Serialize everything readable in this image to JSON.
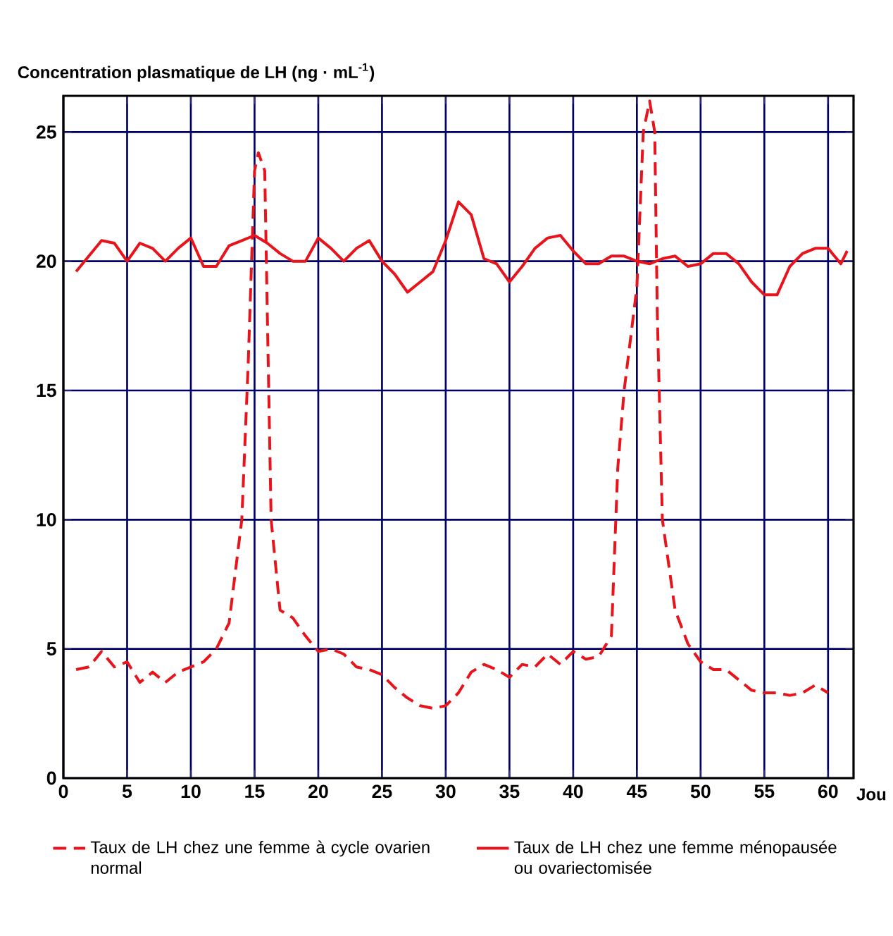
{
  "chart_data": {
    "type": "line",
    "ylabel": "Concentration plasmatique de LH (ng · mL$^{-1}$)",
    "xlabel": "Jou",
    "xlim": [
      0,
      62
    ],
    "ylim": [
      0,
      26.4
    ],
    "xticks": [
      0,
      5,
      10,
      15,
      20,
      25,
      30,
      35,
      40,
      45,
      50,
      55,
      60
    ],
    "yticks": [
      0,
      5,
      10,
      15,
      20,
      25
    ],
    "grid": true,
    "legend": "bottom",
    "marker": "none",
    "series": [
      {
        "name": "Taux de LH chez une femme à cycle ovarien normal",
        "color": "#e8141b",
        "line_style": "dashed",
        "x": [
          1,
          2,
          3,
          4,
          5,
          6,
          7,
          8,
          9,
          10,
          11,
          12,
          13,
          14,
          14.5,
          15,
          15.3,
          15.8,
          16,
          16.3,
          17,
          18,
          19,
          20,
          21,
          22,
          23,
          24,
          25,
          26,
          27,
          28,
          29,
          30,
          31,
          32,
          33,
          34,
          35,
          36,
          37,
          38,
          39,
          40,
          41,
          42,
          43,
          43.5,
          44,
          45,
          45.5,
          46,
          46.4,
          46.6,
          47,
          48,
          49,
          50,
          51,
          52,
          53,
          54,
          55,
          56,
          57,
          58,
          59,
          60
        ],
        "values": [
          4.2,
          4.3,
          4.9,
          4.3,
          4.5,
          3.7,
          4.1,
          3.7,
          4.1,
          4.3,
          4.5,
          5.0,
          6.0,
          10,
          16,
          23.5,
          24.2,
          23.5,
          18,
          10,
          6.5,
          6.2,
          5.5,
          4.9,
          5.0,
          4.8,
          4.3,
          4.2,
          4.0,
          3.5,
          3.1,
          2.8,
          2.7,
          2.8,
          3.3,
          4.1,
          4.4,
          4.2,
          3.9,
          4.4,
          4.3,
          4.8,
          4.4,
          4.9,
          4.6,
          4.7,
          5.5,
          12,
          15,
          19,
          25,
          26.2,
          25,
          18,
          10,
          6.5,
          5.2,
          4.5,
          4.2,
          4.2,
          3.8,
          3.4,
          3.3,
          3.3,
          3.2,
          3.3,
          3.6,
          3.3
        ]
      },
      {
        "name": "Taux de LH chez une femme ménopausée ou ovariectomisée",
        "color": "#e8141b",
        "line_style": "solid",
        "x": [
          1,
          2,
          3,
          4,
          5,
          6,
          7,
          8,
          9,
          10,
          11,
          12,
          13,
          14,
          15,
          16,
          17,
          18,
          19,
          20,
          21,
          22,
          23,
          24,
          25,
          26,
          27,
          28,
          29,
          30,
          31,
          32,
          33,
          34,
          35,
          36,
          37,
          38,
          39,
          40,
          41,
          42,
          43,
          44,
          45,
          46,
          47,
          48,
          49,
          50,
          51,
          52,
          53,
          54,
          55,
          56,
          57,
          58,
          59,
          60,
          61,
          61.5
        ],
        "values": [
          19.6,
          20.2,
          20.8,
          20.7,
          20.0,
          20.7,
          20.5,
          20.0,
          20.5,
          20.9,
          19.8,
          19.8,
          20.6,
          20.8,
          21.0,
          20.7,
          20.3,
          20.0,
          20.0,
          20.9,
          20.5,
          20.0,
          20.5,
          20.8,
          20.0,
          19.5,
          18.8,
          19.2,
          19.6,
          20.8,
          22.3,
          21.8,
          20.1,
          19.9,
          19.2,
          19.8,
          20.5,
          20.9,
          21.0,
          20.4,
          19.9,
          19.9,
          20.2,
          20.2,
          20.0,
          19.9,
          20.1,
          20.2,
          19.8,
          19.9,
          20.3,
          20.3,
          19.9,
          19.2,
          18.7,
          18.7,
          19.8,
          20.3,
          20.5,
          20.5,
          19.9,
          20.4
        ]
      }
    ]
  }
}
